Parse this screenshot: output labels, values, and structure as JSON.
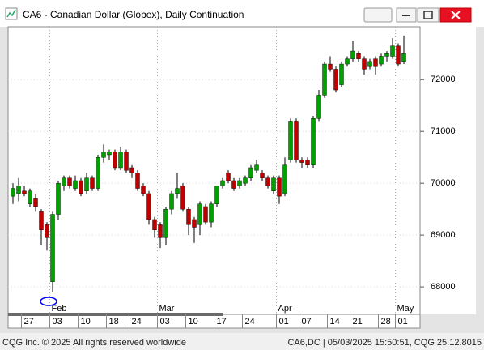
{
  "window_title": "CA6 - Canadian Dollar (Globex), Daily Continuation",
  "footer_left": "CQG Inc. © 2025 All rights reserved worldwide",
  "footer_right": "CA6,DC | 05/03/2025 15:50:51, CQG 25.12.8015",
  "chart_data": {
    "type": "candlestick",
    "categories": [
      null,
      null,
      "27",
      null,
      null,
      null,
      null,
      "03",
      null,
      null,
      null,
      null,
      "10",
      null,
      null,
      null,
      null,
      "18",
      null,
      null,
      null,
      "24",
      null,
      null,
      null,
      null,
      "03",
      null,
      null,
      null,
      null,
      "10",
      null,
      null,
      null,
      null,
      "17",
      null,
      null,
      null,
      null,
      "24",
      null,
      null,
      null,
      null,
      null,
      "01",
      null,
      null,
      null,
      "07",
      null,
      null,
      null,
      null,
      "14",
      null,
      null,
      null,
      "21",
      null,
      null,
      null,
      null,
      "28",
      null,
      null,
      "01",
      null
    ],
    "months": [
      null,
      null,
      null,
      null,
      null,
      null,
      null,
      "Feb",
      null,
      null,
      null,
      null,
      null,
      null,
      null,
      null,
      null,
      null,
      null,
      null,
      null,
      null,
      null,
      null,
      null,
      null,
      "Mar",
      null,
      null,
      null,
      null,
      null,
      null,
      null,
      null,
      null,
      null,
      null,
      null,
      null,
      null,
      null,
      null,
      null,
      null,
      null,
      null,
      "Apr",
      null,
      null,
      null,
      null,
      null,
      null,
      null,
      null,
      null,
      null,
      null,
      null,
      null,
      null,
      null,
      null,
      null,
      null,
      null,
      null,
      "May",
      null
    ],
    "open": [
      69750,
      69800,
      69850,
      69600,
      69700,
      69450,
      69200,
      68100,
      69400,
      69950,
      70100,
      69900,
      70050,
      69850,
      70100,
      69900,
      70500,
      70550,
      70600,
      70300,
      70600,
      70300,
      70200,
      69950,
      69800,
      69300,
      69200,
      68950,
      69500,
      69800,
      69950,
      69500,
      69300,
      69200,
      69550,
      69250,
      69600,
      69950,
      70200,
      70050,
      69950,
      70000,
      70100,
      70250,
      70200,
      70100,
      69850,
      70100,
      69800,
      70450,
      71200,
      70450,
      70450,
      70350,
      71250,
      71700,
      72300,
      72200,
      71900,
      72300,
      72400,
      72500,
      72400,
      72250,
      72400,
      72300,
      72450,
      72450,
      72650,
      72350
    ],
    "high": [
      70000,
      70100,
      69950,
      69900,
      69800,
      69500,
      69250,
      69450,
      70050,
      70150,
      70150,
      70150,
      70100,
      70200,
      70150,
      70550,
      70750,
      70650,
      70650,
      70700,
      70650,
      70350,
      70250,
      70000,
      69850,
      69350,
      69250,
      69550,
      69850,
      70200,
      70000,
      69550,
      69350,
      69650,
      69600,
      69650,
      69950,
      70100,
      70250,
      70100,
      70100,
      70150,
      70350,
      70450,
      70250,
      70150,
      70150,
      70150,
      70500,
      71250,
      71250,
      70500,
      70500,
      71300,
      71800,
      72350,
      72450,
      72250,
      72350,
      72450,
      72750,
      72550,
      72450,
      72400,
      72450,
      72500,
      72550,
      72800,
      72700,
      72850
    ],
    "low": [
      69600,
      69650,
      69750,
      69550,
      69450,
      68800,
      68700,
      67900,
      69300,
      69850,
      69900,
      69850,
      69750,
      69800,
      69850,
      69850,
      70400,
      70450,
      70250,
      70250,
      70200,
      70100,
      69850,
      69750,
      69200,
      68950,
      68750,
      68800,
      69400,
      69700,
      69450,
      69000,
      68850,
      69000,
      69200,
      69150,
      69550,
      69900,
      70000,
      69850,
      69900,
      69950,
      70050,
      70200,
      70050,
      69900,
      69800,
      69600,
      69750,
      70400,
      70400,
      70300,
      70300,
      70300,
      71200,
      71650,
      72150,
      71750,
      71850,
      72250,
      72350,
      72350,
      72100,
      72200,
      72100,
      72250,
      72350,
      72400,
      72250,
      72300
    ],
    "close": [
      69900,
      69950,
      69800,
      69850,
      69550,
      69100,
      68950,
      69400,
      70000,
      70100,
      69950,
      70050,
      69800,
      70100,
      69900,
      70500,
      70600,
      70600,
      70300,
      70600,
      70250,
      70200,
      69900,
      69800,
      69300,
      69100,
      68950,
      69500,
      69800,
      69900,
      69500,
      69200,
      69150,
      69600,
      69250,
      69600,
      69950,
      70050,
      70050,
      69900,
      70050,
      70100,
      70300,
      70350,
      70100,
      69950,
      70100,
      69750,
      70350,
      71200,
      70450,
      70400,
      70350,
      71250,
      71700,
      72300,
      72200,
      71800,
      72300,
      72400,
      72550,
      72400,
      72200,
      72350,
      72250,
      72450,
      72500,
      72650,
      72300,
      72500
    ],
    "up_color": "#00a000",
    "down_color": "#c00000",
    "ylim": [
      67470,
      73020
    ],
    "yticks": [
      68000,
      69000,
      70000,
      71000,
      72000
    ],
    "grid": true
  }
}
